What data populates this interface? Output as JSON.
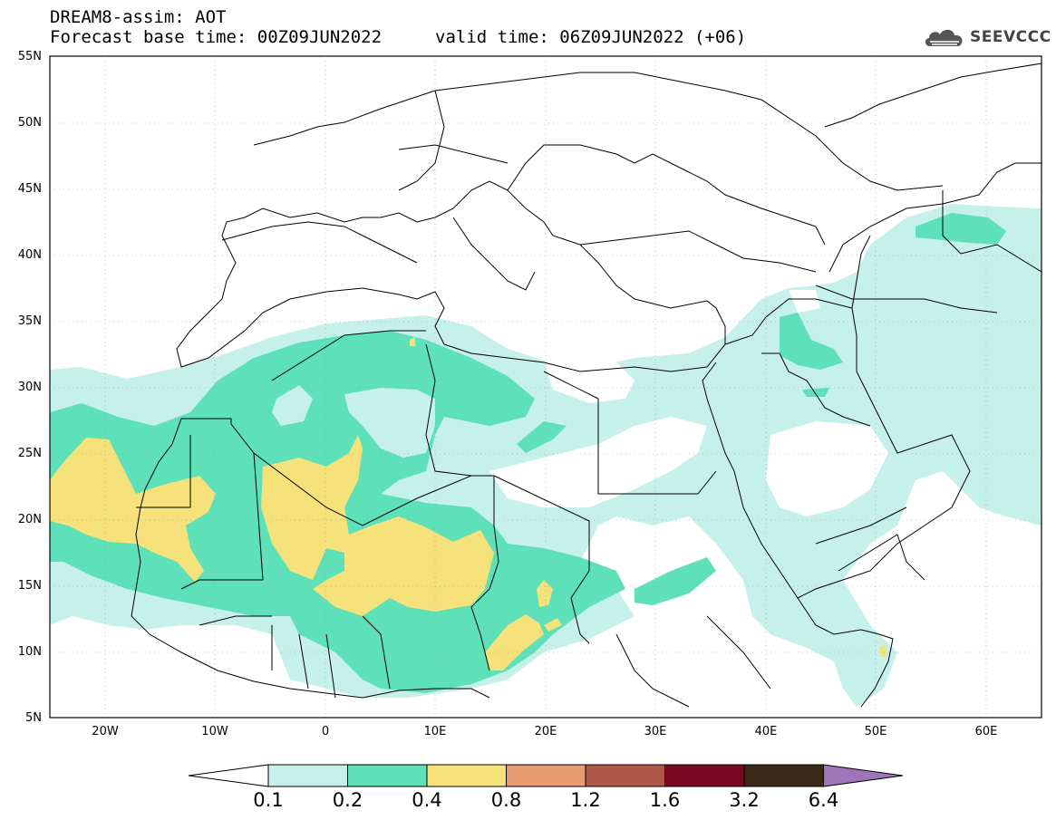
{
  "header": {
    "line1": "DREAM8-assim: AOT",
    "line2a": "Forecast base time: 00Z09JUN2022",
    "line2b": "valid time: 06Z09JUN2022 (+06)"
  },
  "logo": {
    "text": "SEEVCCC",
    "icon": "cloud-icon"
  },
  "axes": {
    "lat_labels": [
      "55N",
      "50N",
      "45N",
      "40N",
      "35N",
      "30N",
      "25N",
      "20N",
      "15N",
      "10N",
      "5N"
    ],
    "lon_labels": [
      "20W",
      "10W",
      "0",
      "10E",
      "20E",
      "30E",
      "40E",
      "50E",
      "60E"
    ]
  },
  "colorbar": {
    "labels": [
      "0.1",
      "0.2",
      "0.4",
      "0.8",
      "1.2",
      "1.6",
      "3.2",
      "6.4"
    ],
    "colors": [
      "#ffffff",
      "#c6f0ea",
      "#5ee0b9",
      "#f5e27a",
      "#e89a72",
      "#b05848",
      "#7a0a23",
      "#3c2818",
      "#9e75b8"
    ]
  },
  "palette": {
    "c01": "#c6f0ea",
    "c02": "#5ee0b9",
    "c04": "#f5e27a"
  }
}
